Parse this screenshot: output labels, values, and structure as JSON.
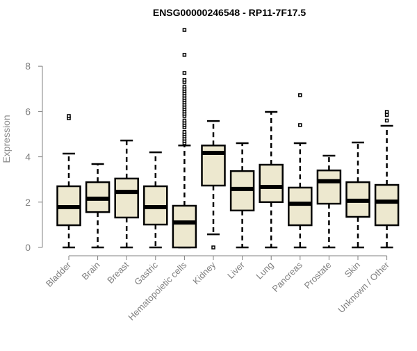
{
  "chart_data": {
    "type": "boxplot",
    "title": "ENSG00000246548 - RP11-7F17.5",
    "xlabel": "",
    "ylabel": "Expression",
    "ylim": [
      0,
      9.6
    ],
    "yticks": [
      0,
      2,
      4,
      6,
      8
    ],
    "grid": false,
    "colors": {
      "box_fill": "#ede8cf",
      "stroke": "#000000",
      "axis": "#808080",
      "label": "#7f7f7f"
    },
    "categories": [
      "Bladder",
      "Brain",
      "Breast",
      "Gastric",
      "Hematopoietic cells",
      "Kidney",
      "Liver",
      "Lung",
      "Pancreas",
      "Prostate",
      "Skin",
      "Unknown / Other"
    ],
    "boxes": [
      {
        "min": 0,
        "q1": 0.98,
        "median": 1.78,
        "q3": 2.7,
        "max": 4.14,
        "outliers": [
          5.7,
          5.8
        ]
      },
      {
        "min": 0,
        "q1": 1.56,
        "median": 2.15,
        "q3": 2.88,
        "max": 3.68,
        "outliers": []
      },
      {
        "min": 0,
        "q1": 1.32,
        "median": 2.45,
        "q3": 3.04,
        "max": 4.72,
        "outliers": []
      },
      {
        "min": 0,
        "q1": 1.01,
        "median": 1.78,
        "q3": 2.7,
        "max": 4.2,
        "outliers": []
      },
      {
        "min": 0,
        "q1": 0,
        "median": 1.1,
        "q3": 1.84,
        "max": 4.5,
        "outliers": [
          4.6,
          4.7,
          4.8,
          4.9,
          5.0,
          5.1,
          5.3,
          5.4,
          5.5,
          5.6,
          5.8,
          5.9,
          6.0,
          6.1,
          6.2,
          6.3,
          6.4,
          6.5,
          6.6,
          6.7,
          6.8,
          6.9,
          7.0,
          7.1,
          7.3,
          7.4,
          7.7,
          8.5,
          9.6
        ]
      },
      {
        "min": 0.58,
        "q1": 2.73,
        "median": 4.17,
        "q3": 4.5,
        "max": 5.58,
        "outliers": [
          0
        ]
      },
      {
        "min": 0,
        "q1": 1.63,
        "median": 2.58,
        "q3": 3.37,
        "max": 4.6,
        "outliers": []
      },
      {
        "min": 0,
        "q1": 2.0,
        "median": 2.67,
        "q3": 3.65,
        "max": 5.98,
        "outliers": []
      },
      {
        "min": 0,
        "q1": 0.98,
        "median": 1.93,
        "q3": 2.64,
        "max": 4.6,
        "outliers": [
          5.4,
          6.72
        ]
      },
      {
        "min": 0,
        "q1": 1.93,
        "median": 2.92,
        "q3": 3.4,
        "max": 4.05,
        "outliers": []
      },
      {
        "min": 0,
        "q1": 1.35,
        "median": 2.06,
        "q3": 2.88,
        "max": 4.63,
        "outliers": []
      },
      {
        "min": 0,
        "q1": 0.98,
        "median": 2.02,
        "q3": 2.76,
        "max": 5.37,
        "outliers": [
          5.6,
          5.85,
          5.98
        ]
      }
    ]
  }
}
